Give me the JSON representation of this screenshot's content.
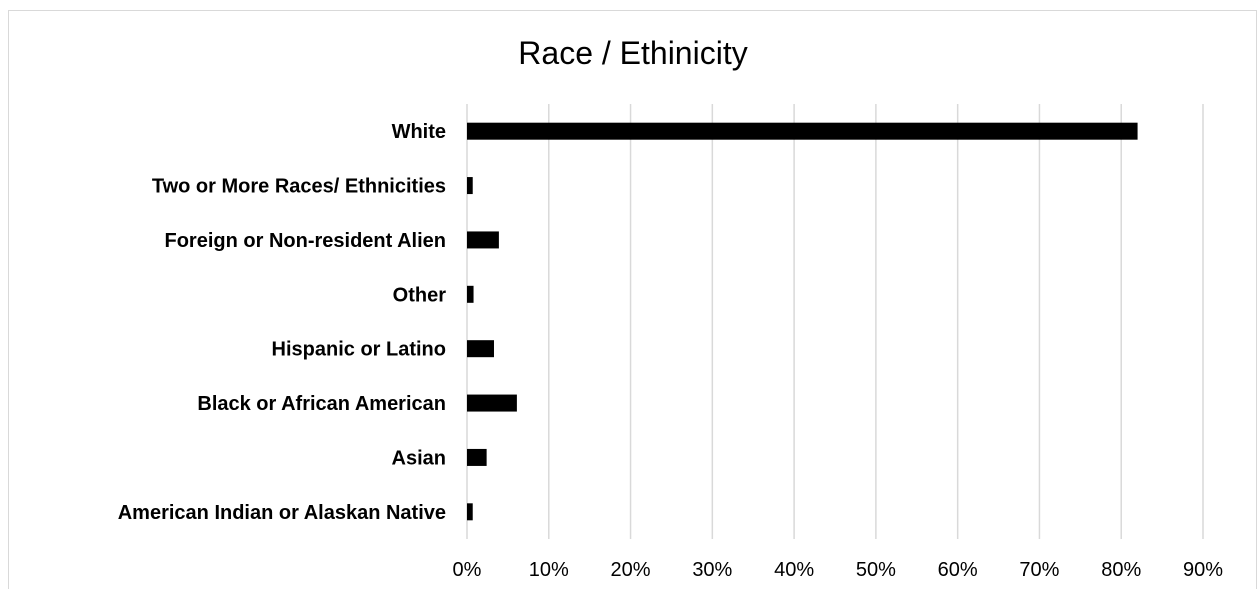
{
  "chart_data": {
    "type": "bar",
    "orientation": "horizontal",
    "title": "Race / Ethinicity",
    "categories": [
      "White",
      "Two or More Races/ Ethnicities",
      "Foreign or Non-resident Alien",
      "Other",
      "Hispanic or Latino",
      "Black or African American",
      "Asian",
      "American Indian or Alaskan Native"
    ],
    "values": [
      82,
      0.7,
      3.9,
      0.8,
      3.3,
      6.1,
      2.4,
      0.7
    ],
    "xlim": [
      0,
      90
    ],
    "x_ticks": [
      "0%",
      "10%",
      "20%",
      "30%",
      "40%",
      "50%",
      "60%",
      "70%",
      "80%",
      "90%"
    ],
    "grid": "vertical",
    "legend": "none",
    "bar_color": "#000000",
    "grid_color": "#d9d9d9"
  }
}
